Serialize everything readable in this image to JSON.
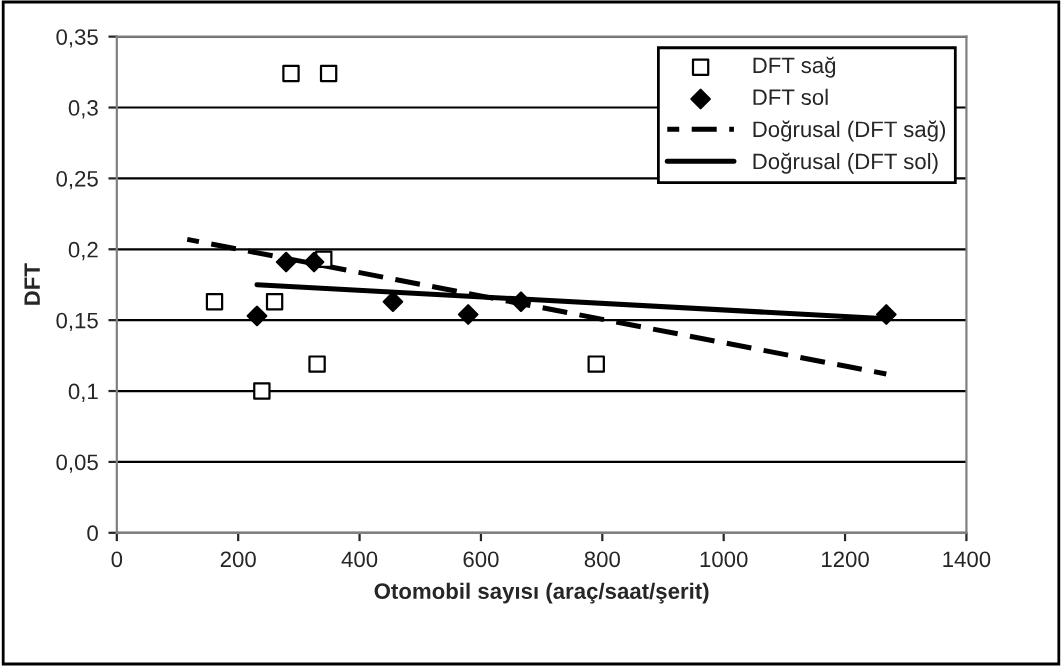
{
  "chart_data": {
    "type": "scatter",
    "xlabel": "Otomobil sayısı (araç/saat/şerit)",
    "ylabel": "DFT",
    "xlim": [
      0,
      1400
    ],
    "xticks": [
      0,
      200,
      400,
      600,
      800,
      1000,
      1200,
      1400
    ],
    "ylim": [
      0,
      0.35
    ],
    "yticks": [
      {
        "value": 0,
        "label": "0"
      },
      {
        "value": 0.05,
        "label": "0,05"
      },
      {
        "value": 0.1,
        "label": "0,1"
      },
      {
        "value": 0.15,
        "label": "0,15"
      },
      {
        "value": 0.2,
        "label": "0,2"
      },
      {
        "value": 0.25,
        "label": "0,25"
      },
      {
        "value": 0.3,
        "label": "0,3"
      },
      {
        "value": 0.35,
        "label": "0,35"
      }
    ],
    "grid": "y",
    "legend": "top right",
    "series": [
      {
        "name": "DFT sağ",
        "marker": "square",
        "color": "#000000",
        "x": [
          161,
          260,
          287,
          349,
          341,
          239,
          330,
          790
        ],
        "values": [
          0.163,
          0.163,
          0.324,
          0.324,
          0.193,
          0.1,
          0.119,
          0.119
        ]
      },
      {
        "name": "DFT sol",
        "marker": "diamond",
        "color": "#000000",
        "x": [
          231,
          279,
          325,
          455,
          579,
          666,
          1268
        ],
        "values": [
          0.153,
          0.191,
          0.191,
          0.163,
          0.154,
          0.163,
          0.154
        ]
      },
      {
        "name": "Doğrusal (DFT sağ)",
        "type": "line",
        "line_style": "dashed",
        "marker": "none",
        "color": "#000000",
        "x": [
          116,
          1268
        ],
        "values": [
          0.207,
          0.112
        ]
      },
      {
        "name": "Doğrusal (DFT sol)",
        "type": "line",
        "line_style": "solid",
        "marker": "none",
        "color": "#000000",
        "x": [
          231,
          1268
        ],
        "values": [
          0.175,
          0.151
        ]
      }
    ]
  }
}
